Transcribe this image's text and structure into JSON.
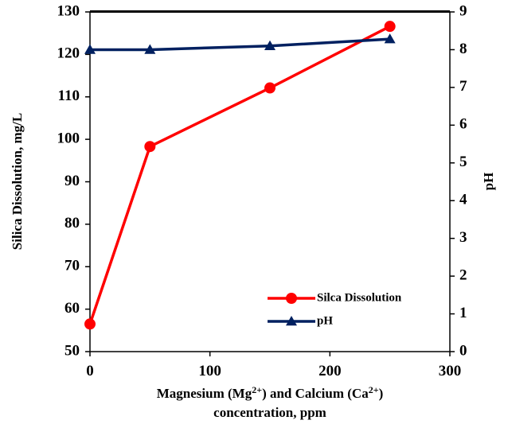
{
  "chart_data": {
    "type": "line",
    "x": [
      0,
      50,
      150,
      250
    ],
    "xlim": [
      0,
      300
    ],
    "xticks": [
      "0",
      "100",
      "200",
      "300"
    ],
    "xlabel_line1_parts": [
      "Magnesium (Mg",
      "2+",
      ") and Calcium (Ca",
      "2+",
      ")"
    ],
    "xlabel_line2": "concentration, ppm",
    "ylabel_left": "Silica Dissolution, mg/L",
    "ylabel_right": "pH",
    "ylim_left": [
      50,
      130
    ],
    "ylim_right": [
      0,
      9
    ],
    "yticks_left": [
      "50",
      "60",
      "70",
      "80",
      "90",
      "100",
      "110",
      "120",
      "130"
    ],
    "yticks_right": [
      "0",
      "1",
      "2",
      "3",
      "4",
      "5",
      "6",
      "7",
      "8",
      "9"
    ],
    "legend_position": "bottom-right",
    "grid": false,
    "series": [
      {
        "name": "Silca Dissolution",
        "axis": "left",
        "marker": "circle",
        "color": "#ff0000",
        "values": [
          56.5,
          98.3,
          112.1,
          126.6
        ]
      },
      {
        "name": "pH",
        "axis": "right",
        "marker": "triangle",
        "color": "#002060",
        "values": [
          8.0,
          8.0,
          8.1,
          8.28
        ]
      }
    ]
  }
}
